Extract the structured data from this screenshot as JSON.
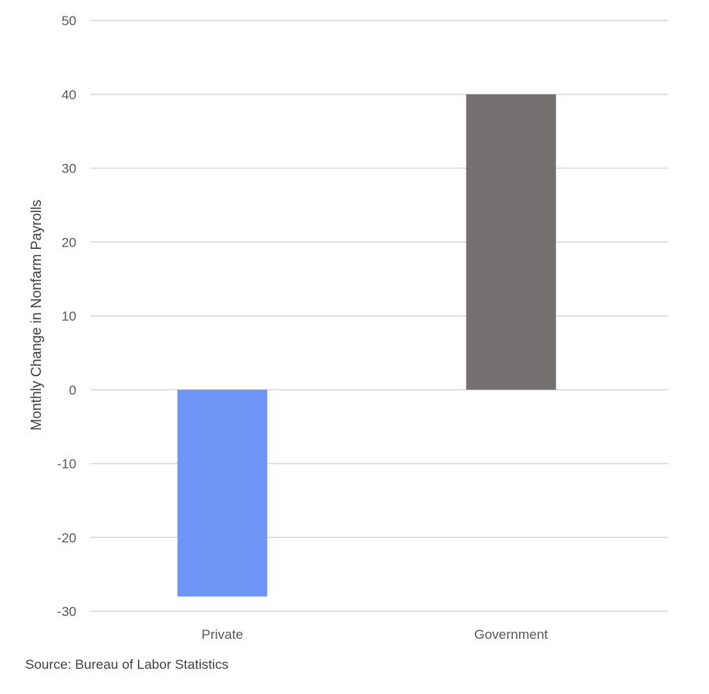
{
  "chart_data": {
    "type": "bar",
    "title": "",
    "xlabel": "",
    "ylabel": "Monthly Change in Nonfarm Payrolls",
    "categories": [
      "Private",
      "Government"
    ],
    "values": [
      -28,
      40
    ],
    "colors": [
      "#6f96f7",
      "#757070"
    ],
    "ylim": [
      -30,
      50
    ],
    "yticks": [
      50,
      40,
      30,
      20,
      10,
      0,
      -10,
      -20,
      -30
    ],
    "grid": true,
    "legend": "none"
  },
  "source": "Source: Bureau of Labor Statistics"
}
